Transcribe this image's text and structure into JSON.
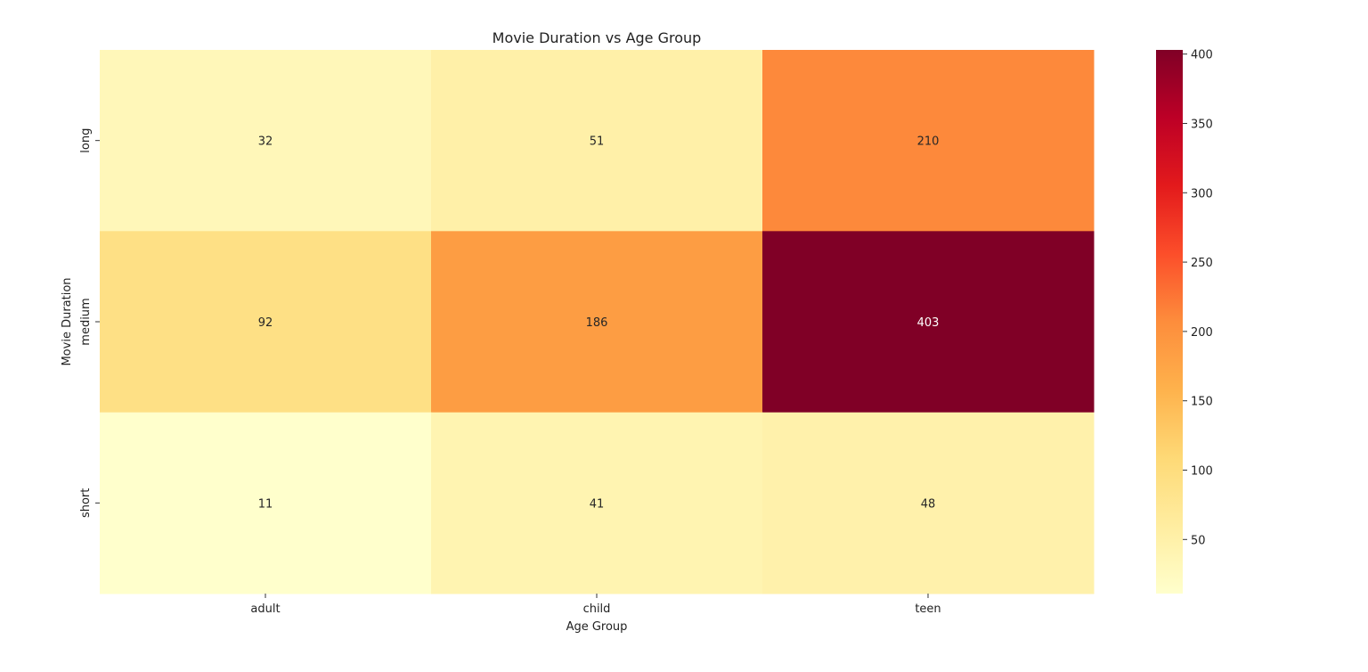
{
  "chart_data": {
    "type": "heatmap",
    "title": "Movie Duration vs Age Group",
    "xlabel": "Age Group",
    "ylabel": "Movie Duration",
    "x_categories": [
      "adult",
      "child",
      "teen"
    ],
    "y_categories": [
      "long",
      "medium",
      "short"
    ],
    "values": [
      [
        32,
        51,
        210
      ],
      [
        92,
        186,
        403
      ],
      [
        11,
        41,
        48
      ]
    ],
    "colormap": "YlOrRd",
    "colorbar": {
      "range": [
        11,
        403
      ],
      "ticks": [
        50,
        100,
        150,
        200,
        250,
        300,
        350,
        400
      ],
      "tick_labels": [
        "50",
        "100",
        "150",
        "200",
        "250",
        "300",
        "350",
        "400"
      ]
    },
    "annotations": true,
    "grid": false
  }
}
